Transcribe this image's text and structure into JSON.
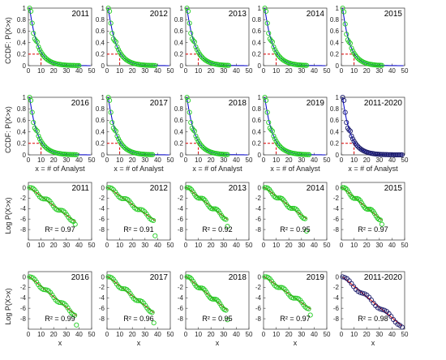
{
  "figure": {
    "ccdf_ylabel": "CCDF: P(X>x)",
    "log_ylabel": "Log P(X>x)",
    "ccdf_xlabel": "x = # of Analyst",
    "log_xlabel": "x"
  },
  "chart_data": [
    {
      "type": "line",
      "panel_group": "ccdf",
      "x_ticks": [
        0,
        10,
        20,
        30,
        40,
        50
      ],
      "y_ticks": [
        0,
        0.2,
        0.4,
        0.6,
        0.8,
        1
      ],
      "y_tick_labels": [
        "0",
        "0.2",
        "0.4",
        "0.6",
        "0.8",
        "1"
      ],
      "xlim": [
        0,
        50
      ],
      "ylim": [
        0,
        1
      ],
      "grid": false,
      "reference_threshold": {
        "x": 10,
        "y": 0.2
      },
      "panels": [
        {
          "label": "2011",
          "x_max": 40,
          "decay": 0.16,
          "marker_color": "#22cc22"
        },
        {
          "label": "2012",
          "x_max": 38,
          "decay": 0.16,
          "marker_color": "#22cc22"
        },
        {
          "label": "2013",
          "x_max": 34,
          "decay": 0.16,
          "marker_color": "#22cc22"
        },
        {
          "label": "2014",
          "x_max": 34,
          "decay": 0.16,
          "marker_color": "#22cc22"
        },
        {
          "label": "2015",
          "x_max": 32,
          "decay": 0.17,
          "marker_color": "#22cc22"
        },
        {
          "label": "2016",
          "x_max": 38,
          "decay": 0.16,
          "marker_color": "#22cc22"
        },
        {
          "label": "2017",
          "x_max": 36,
          "decay": 0.16,
          "marker_color": "#22cc22"
        },
        {
          "label": "2018",
          "x_max": 33,
          "decay": 0.16,
          "marker_color": "#22cc22"
        },
        {
          "label": "2019",
          "x_max": 36,
          "decay": 0.16,
          "marker_color": "#22cc22"
        },
        {
          "label": "2011-2020",
          "x_max": 48,
          "decay": 0.16,
          "marker_color": "#1a1a6a"
        }
      ]
    },
    {
      "type": "scatter",
      "panel_group": "log",
      "x_ticks": [
        0,
        10,
        20,
        30,
        40,
        50
      ],
      "y_ticks": [
        0,
        -2,
        -4,
        -6,
        -8
      ],
      "y_tick_labels": [
        "0",
        "-2",
        "-4",
        "-6",
        "-8"
      ],
      "xlim": [
        0,
        50
      ],
      "ylim": [
        -10,
        1
      ],
      "grid": false,
      "panels": [
        {
          "label": "2011",
          "r2": "R² = 0.97",
          "x_max": 37,
          "slope": -0.18,
          "y_end": -7.0,
          "marker_color": "#22cc22"
        },
        {
          "label": "2012",
          "r2": "R² = 0.91",
          "x_max": 38,
          "slope": -0.17,
          "y_end": -9.2,
          "marker_color": "#22cc22"
        },
        {
          "label": "2013",
          "r2": "R² = 0.92",
          "x_max": 33,
          "slope": -0.19,
          "y_end": -7.4,
          "marker_color": "#22cc22"
        },
        {
          "label": "2014",
          "r2": "R² = 0.95",
          "x_max": 34,
          "slope": -0.18,
          "y_end": -8.3,
          "marker_color": "#22cc22"
        },
        {
          "label": "2015",
          "r2": "R² = 0.97",
          "x_max": 32,
          "slope": -0.2,
          "y_end": -7.0,
          "marker_color": "#22cc22"
        },
        {
          "label": "2016",
          "r2": "R² = 0.99",
          "x_max": 38,
          "slope": -0.2,
          "y_end": -9.2,
          "marker_color": "#22cc22"
        },
        {
          "label": "2017",
          "r2": "R² = 0.96",
          "x_max": 37,
          "slope": -0.19,
          "y_end": -8.8,
          "marker_color": "#22cc22"
        },
        {
          "label": "2018",
          "r2": "R² = 0.95",
          "x_max": 33,
          "slope": -0.2,
          "y_end": -8.2,
          "marker_color": "#22cc22"
        },
        {
          "label": "2019",
          "r2": "R² = 0.97",
          "x_max": 37,
          "slope": -0.17,
          "y_end": -7.3,
          "marker_color": "#22cc22"
        },
        {
          "label": "2011-2020",
          "r2": "R² = 0.98",
          "x_max": 48,
          "slope": -0.2,
          "y_end": -9.6,
          "marker_color": "#1a1a6a"
        }
      ]
    }
  ],
  "colors": {
    "fit_ccdf": "#0000cc",
    "fit_log": "#cc0000",
    "threshold": "#dd0000",
    "axis": "#333333"
  }
}
